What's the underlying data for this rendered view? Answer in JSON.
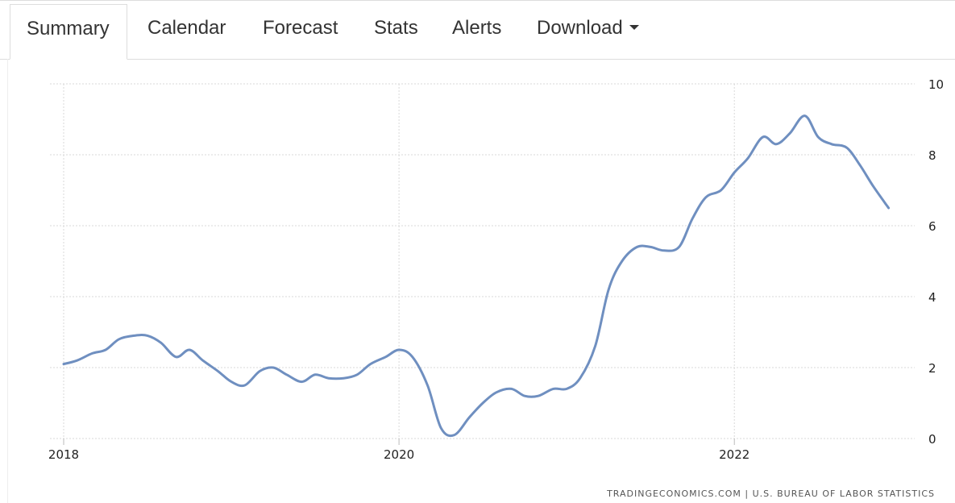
{
  "tabs": {
    "summary": "Summary",
    "calendar": "Calendar",
    "forecast": "Forecast",
    "stats": "Stats",
    "alerts": "Alerts",
    "download": "Download"
  },
  "source": "TRADINGECONOMICS.COM | U.S. BUREAU OF LABOR STATISTICS",
  "chart_data": {
    "type": "line",
    "title": "",
    "xlabel": "",
    "ylabel": "",
    "x_ticks": [
      "2018",
      "2020",
      "2022"
    ],
    "y_ticks": [
      0,
      2,
      4,
      6,
      8,
      10
    ],
    "xlim": [
      2018.0,
      2022.917
    ],
    "ylim": [
      0,
      10
    ],
    "grid": true,
    "y_axis_side": "right",
    "line_color": "#6f8fc0",
    "series": [
      {
        "x": [
          2018.0,
          2018.08,
          2018.17,
          2018.25,
          2018.33,
          2018.42,
          2018.5,
          2018.58,
          2018.67,
          2018.75,
          2018.83,
          2018.92,
          2019.0,
          2019.08,
          2019.17,
          2019.25,
          2019.33,
          2019.42,
          2019.5,
          2019.58,
          2019.67,
          2019.75,
          2019.83,
          2019.92,
          2020.0,
          2020.08,
          2020.17,
          2020.25,
          2020.33,
          2020.42,
          2020.5,
          2020.58,
          2020.67,
          2020.75,
          2020.83,
          2020.92,
          2021.0,
          2021.08,
          2021.17,
          2021.25,
          2021.33,
          2021.42,
          2021.5,
          2021.58,
          2021.67,
          2021.75,
          2021.83,
          2021.92,
          2022.0,
          2022.08,
          2022.17,
          2022.25,
          2022.33,
          2022.42,
          2022.5,
          2022.58,
          2022.67,
          2022.75,
          2022.83,
          2022.92
        ],
        "values": [
          2.1,
          2.2,
          2.4,
          2.5,
          2.8,
          2.9,
          2.9,
          2.7,
          2.3,
          2.5,
          2.2,
          1.9,
          1.6,
          1.5,
          1.9,
          2.0,
          1.8,
          1.6,
          1.8,
          1.7,
          1.7,
          1.8,
          2.1,
          2.3,
          2.5,
          2.3,
          1.5,
          0.3,
          0.1,
          0.6,
          1.0,
          1.3,
          1.4,
          1.2,
          1.2,
          1.4,
          1.4,
          1.7,
          2.6,
          4.2,
          5.0,
          5.4,
          5.4,
          5.3,
          5.4,
          6.2,
          6.8,
          7.0,
          7.5,
          7.9,
          8.5,
          8.3,
          8.6,
          9.1,
          8.5,
          8.3,
          8.2,
          7.7,
          7.1,
          6.5
        ]
      }
    ]
  }
}
